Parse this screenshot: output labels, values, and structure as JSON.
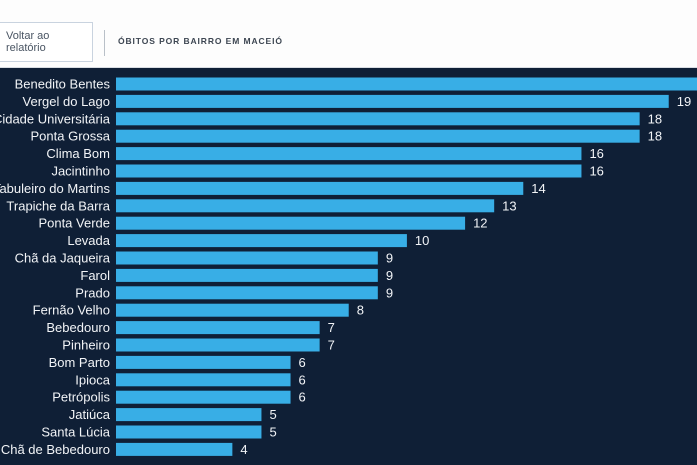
{
  "header": {
    "back_button_label": "Voltar ao relatório",
    "report_title": "ÓBITOS POR BAIRRO EM MACEIÓ"
  },
  "colors": {
    "background": "#0f1f36",
    "bar": "#38aee6",
    "text": "#f2f4f7"
  },
  "chart_data": {
    "type": "bar",
    "orientation": "horizontal",
    "title": "ÓBITOS POR BAIRRO EM MACEIÓ",
    "xlabel": "",
    "ylabel": "",
    "xlim": [
      0,
      22
    ],
    "grid": false,
    "categories": [
      "Benedito Bentes",
      "Vergel do Lago",
      "Cidade Universitária",
      "Ponta Grossa",
      "Clima Bom",
      "Jacintinho",
      "Tabuleiro do Martins",
      "Trapiche da Barra",
      "Ponta Verde",
      "Levada",
      "Chã da Jaqueira",
      "Farol",
      "Prado",
      "Fernão Velho",
      "Bebedouro",
      "Pinheiro",
      "Bom Parto",
      "Ipioca",
      "Petrópolis",
      "Jatiúca",
      "Santa Lúcia",
      "Chã de Bebedouro"
    ],
    "values": [
      22,
      19,
      18,
      18,
      16,
      16,
      14,
      13,
      12,
      10,
      9,
      9,
      9,
      8,
      7,
      7,
      6,
      6,
      6,
      5,
      5,
      4
    ]
  }
}
